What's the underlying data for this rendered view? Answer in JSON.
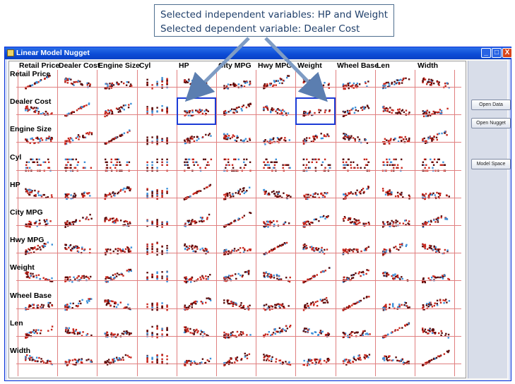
{
  "callout": {
    "line1": "Selected independent variables: HP and Weight",
    "line2": "Selected dependent variable: Dealer Cost"
  },
  "window": {
    "title": "Linear Model Nugget",
    "controls": {
      "minimize": "_",
      "maximize": "□",
      "close": "X"
    }
  },
  "matrix": {
    "columns": [
      "Retail Price",
      "Dealer Cost",
      "Engine Size",
      "Cyl",
      "HP",
      "City MPG",
      "Hwy MPG",
      "Weight",
      "Wheel Base",
      "Len",
      "Width"
    ],
    "rows": [
      "Retail Price",
      "Dealer Cost",
      "Engine Size",
      "Cyl",
      "HP",
      "City MPG",
      "Hwy MPG",
      "Weight",
      "Wheel Base",
      "Len",
      "Width"
    ],
    "selected_cells": [
      {
        "row": "Dealer Cost",
        "col": "HP"
      },
      {
        "row": "Dealer Cost",
        "col": "Weight"
      }
    ],
    "colors": {
      "points_dark": "#5a0a0a",
      "points_red": "#c8261c",
      "points_blue": "#3b8fd8",
      "grid": "#e08080",
      "selection": "#1c3bd6"
    }
  },
  "sidebar": {
    "buttons": [
      {
        "label": "Open Data"
      },
      {
        "label": "Open Nugget"
      },
      {
        "label": "Model Space"
      }
    ]
  }
}
